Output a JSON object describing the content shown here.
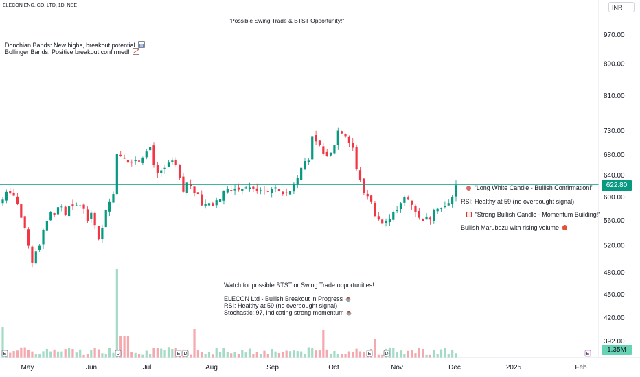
{
  "header": {
    "symbol_title": "ELECON ENG. CO. LTD, 1D, NSE",
    "currency": "INR"
  },
  "annotations": {
    "title": "\"Possible Swing Trade & BTST Opportunity!\"",
    "donchian": "Donchian Bands: New highs, breakout potential",
    "bollinger": "Bollinger Bands: Positive breakout confirmed!",
    "long_white": "\"Long White Candle - Bullish Confirmation!\"",
    "rsi_right": "RSI: Healthy at 59 (no overbought signal)",
    "strong_bullish": "\"Strong Bullish Candle - Momentum Building!\"",
    "marubozu": "Bullish Marubozu with rising volume",
    "watch": "Watch for possible BTST or Swing Trade opportunities!",
    "breakout": "ELECON Ltd - Bullish Breakout in Progress",
    "rsi_bottom": "RSI: Healthy at 59 (no overbought signal)",
    "stochastic": "Stochastic: 97, indicating strong momentum"
  },
  "icons": {
    "donchian": "bar-chart-icon",
    "bollinger": "trending-up-icon",
    "long_white": "collision-icon",
    "strong_bullish": "calendar-icon",
    "marubozu": "fire-icon",
    "breakout": "rocket-icon"
  },
  "price_tag": "622.80",
  "volume_tag": "1.35M",
  "colors": {
    "up": "#089981",
    "down": "#f23645",
    "vol_up": "#a5dbc6",
    "vol_down": "#f5a8ae",
    "price_line": "#089981"
  },
  "chart_data": {
    "type": "candlestick",
    "symbol": "ELECON ENG. CO. LTD",
    "interval": "1D",
    "exchange": "NSE",
    "y_axis": {
      "scale": "log",
      "ticks": [
        "970.00",
        "890.00",
        "810.00",
        "730.00",
        "680.00",
        "640.00",
        "600.00",
        "560.00",
        "520.00",
        "480.00",
        "450.00",
        "420.00",
        "392.00"
      ],
      "range": [
        385,
        1040
      ]
    },
    "x_axis": {
      "labels": [
        "May",
        "Jun",
        "Jul",
        "Aug",
        "Sep",
        "Oct",
        "Nov",
        "Dec",
        "2025",
        "Feb"
      ]
    },
    "last_price": 622.8,
    "last_volume": "1.35M",
    "series": [
      {
        "name": "price",
        "close_path": [
          596,
          610,
          607,
          603,
          588,
          565,
          548,
          520,
          495,
          512,
          520,
          545,
          560,
          575,
          570,
          583,
          584,
          570,
          585,
          585,
          586,
          586,
          580,
          560,
          573,
          553,
          530,
          548,
          578,
          593,
          606,
          682,
          678,
          673,
          665,
          665,
          670,
          667,
          675,
          687,
          697,
          660,
          645,
          650,
          655,
          665,
          669,
          660,
          635,
          610,
          627,
          620,
          608,
          606,
          586,
          588,
          590,
          585,
          595,
          597,
          612,
          615,
          612,
          615,
          614,
          615,
          618,
          618,
          615,
          612,
          613,
          612,
          610,
          615,
          618,
          612,
          606,
          608,
          612,
          625,
          635,
          655,
          668,
          669,
          718,
          708,
          701,
          683,
          678,
          685,
          700,
          731,
          725,
          718,
          705,
          695,
          652,
          632,
          608,
          602,
          593,
          568,
          562,
          555,
          560,
          563,
          575,
          578,
          590,
          600,
          596,
          587,
          575,
          565,
          560,
          567,
          562,
          578,
          580,
          582,
          585,
          590,
          600,
          622
        ]
      }
    ],
    "volume_note": "Volume histogram at bottom, green for up days and red for down days"
  }
}
